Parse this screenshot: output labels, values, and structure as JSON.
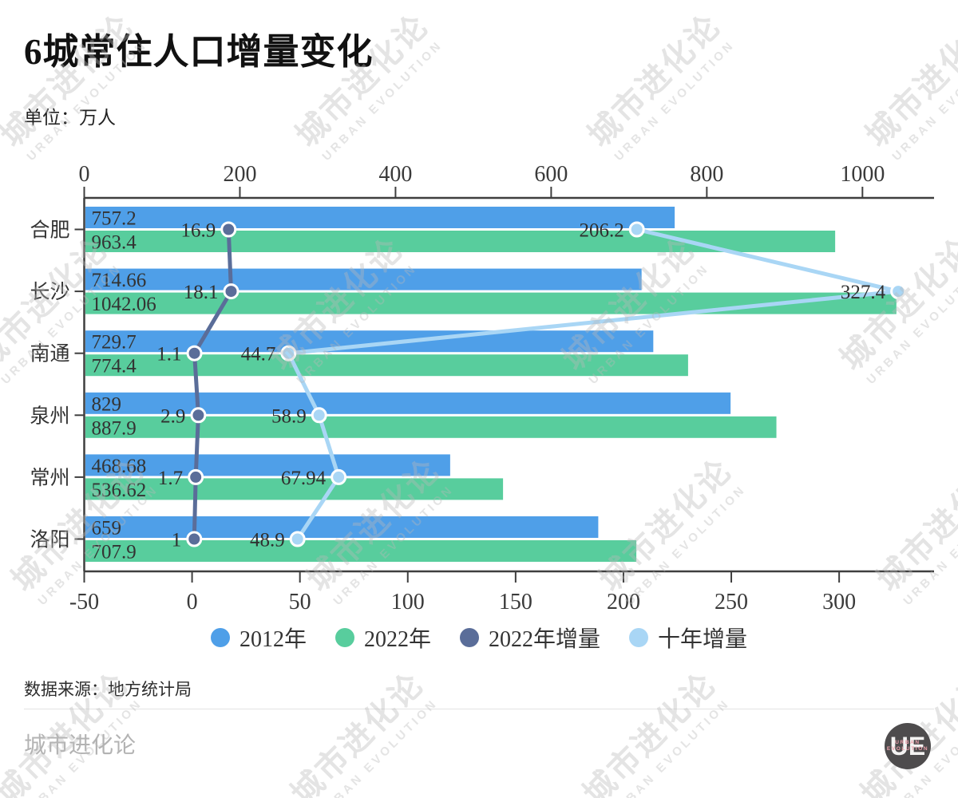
{
  "chart_data": {
    "type": "bar",
    "orientation": "horizontal",
    "title": "6城常住人口增量变化",
    "unit_label": "单位：万人",
    "categories": [
      "合肥",
      "长沙",
      "南通",
      "泉州",
      "常州",
      "洛阳"
    ],
    "series": [
      {
        "name": "2012年",
        "kind": "bar",
        "axis": "top",
        "color": "#4f9fe8",
        "values": [
          757.2,
          714.66,
          729.7,
          829,
          468.68,
          659
        ]
      },
      {
        "name": "2022年",
        "kind": "bar",
        "axis": "top",
        "color": "#58cd9d",
        "values": [
          963.4,
          1042.06,
          774.4,
          887.9,
          536.62,
          707.9
        ]
      },
      {
        "name": "2022年增量",
        "kind": "line",
        "axis": "bottom",
        "color": "#5a6d99",
        "values": [
          16.9,
          18.1,
          1.1,
          2.9,
          1.7,
          1
        ]
      },
      {
        "name": "十年增量",
        "kind": "line",
        "axis": "bottom",
        "color": "#a9d6f5",
        "values": [
          206.2,
          327.4,
          44.7,
          58.9,
          67.94,
          48.9
        ]
      }
    ],
    "top_axis": {
      "ticks": [
        0,
        200,
        400,
        600,
        800,
        1000
      ],
      "min": 0,
      "max": 1092
    },
    "bottom_axis": {
      "ticks": [
        -50,
        0,
        50,
        100,
        150,
        200,
        250,
        300
      ],
      "min": -50,
      "max": 344
    },
    "legend_position": "bottom",
    "grid": false
  },
  "footer": {
    "source": "数据来源：地方统计局",
    "brand": "城市进化论"
  },
  "logo": {
    "monogram": "UE",
    "line1": "URBAN",
    "line2": "EVOLUTION"
  },
  "watermark": {
    "line1": "城市进化论",
    "line2": "URBAN EVOLUTION"
  }
}
